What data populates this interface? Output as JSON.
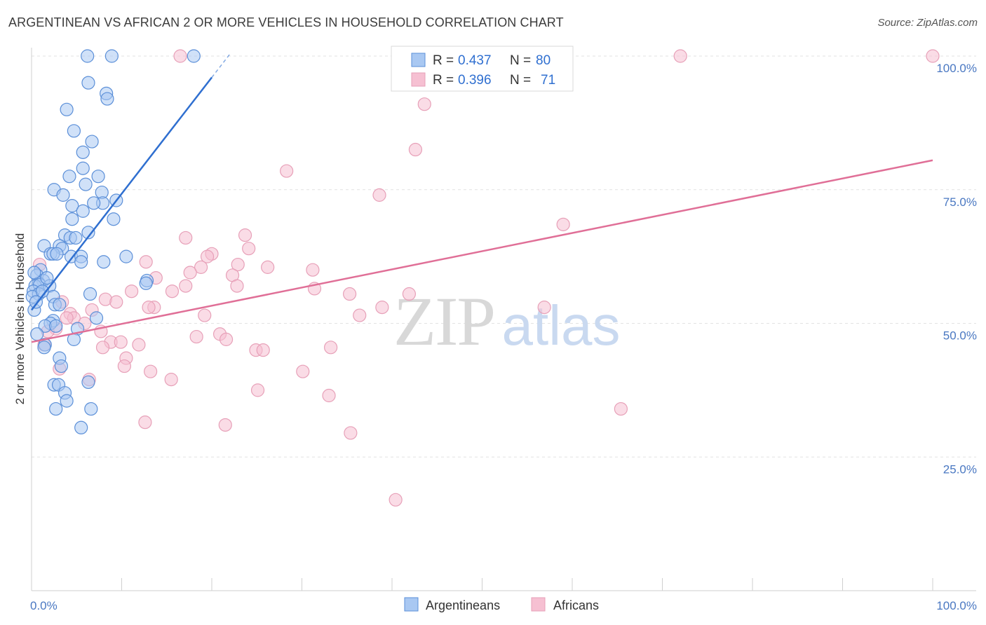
{
  "header": {
    "title": "ARGENTINEAN VS AFRICAN 2 OR MORE VEHICLES IN HOUSEHOLD CORRELATION CHART",
    "source": "Source: ZipAtlas.com"
  },
  "watermark": {
    "zip": "ZIP",
    "atlas": "atlas"
  },
  "colors": {
    "blue_fill": "#a9c8f2",
    "blue_stroke": "#5b8fd8",
    "blue_line": "#2f6fd0",
    "pink_fill": "#f6c0d2",
    "pink_stroke": "#e7a0b8",
    "pink_line": "#e06f97",
    "grid": "#e2e2e2",
    "tick_text": "#4a78c2"
  },
  "legend": {
    "rows": [
      {
        "series": "Argentineans",
        "r_label": "R =",
        "r_value": "0.437",
        "n_label": "N =",
        "n_value": "80"
      },
      {
        "series": "Africans",
        "r_label": "R =",
        "r_value": "0.396",
        "n_label": "N =",
        "n_value": "71"
      }
    ]
  },
  "chart_data": {
    "type": "scatter",
    "title": "ARGENTINEAN VS AFRICAN 2 OR MORE VEHICLES IN HOUSEHOLD CORRELATION CHART",
    "xlabel": "",
    "ylabel": "2 or more Vehicles in Household",
    "xlim": [
      0,
      100
    ],
    "ylim": [
      0,
      100
    ],
    "x_tick_labels": [
      {
        "value": 0,
        "label": "0.0%"
      },
      {
        "value": 100,
        "label": "100.0%"
      }
    ],
    "y_tick_labels": [
      {
        "value": 25,
        "label": "25.0%"
      },
      {
        "value": 50,
        "label": "50.0%"
      },
      {
        "value": 75,
        "label": "75.0%"
      },
      {
        "value": 100,
        "label": "100.0%"
      }
    ],
    "grid": true,
    "legend_position": "top-center",
    "series": [
      {
        "name": "Argentineans",
        "r": 0.437,
        "n": 80,
        "trendline": {
          "x": [
            0,
            20
          ],
          "y": [
            52.5,
            96
          ]
        },
        "points": [
          [
            6.2,
            100
          ],
          [
            8.9,
            100
          ],
          [
            18.0,
            100
          ],
          [
            6.3,
            95
          ],
          [
            8.3,
            93
          ],
          [
            8.4,
            92
          ],
          [
            3.9,
            90
          ],
          [
            4.7,
            86
          ],
          [
            6.7,
            84
          ],
          [
            5.7,
            82
          ],
          [
            5.7,
            79
          ],
          [
            4.2,
            77.5
          ],
          [
            7.4,
            77.5
          ],
          [
            6.0,
            76
          ],
          [
            2.5,
            75
          ],
          [
            7.8,
            74.5
          ],
          [
            3.5,
            74
          ],
          [
            9.4,
            73
          ],
          [
            7.9,
            72.5
          ],
          [
            6.9,
            72.5
          ],
          [
            4.5,
            72
          ],
          [
            5.7,
            71
          ],
          [
            4.5,
            69.5
          ],
          [
            9.1,
            69.5
          ],
          [
            6.3,
            67
          ],
          [
            3.7,
            66.5
          ],
          [
            4.3,
            66
          ],
          [
            4.9,
            66
          ],
          [
            1.4,
            64.5
          ],
          [
            3.1,
            64.5
          ],
          [
            3.4,
            64
          ],
          [
            2.1,
            63
          ],
          [
            2.4,
            63
          ],
          [
            4.4,
            62.5
          ],
          [
            5.5,
            62.5
          ],
          [
            10.5,
            62.5
          ],
          [
            5.5,
            61.5
          ],
          [
            8.0,
            61.5
          ],
          [
            1.0,
            60
          ],
          [
            0.6,
            59
          ],
          [
            1.3,
            58
          ],
          [
            12.8,
            58
          ],
          [
            0.8,
            57.5
          ],
          [
            0.4,
            57
          ],
          [
            12.7,
            57.5
          ],
          [
            0.9,
            57.2
          ],
          [
            2.0,
            57
          ],
          [
            0.2,
            56
          ],
          [
            0.8,
            55.5
          ],
          [
            6.5,
            55.5
          ],
          [
            2.4,
            55
          ],
          [
            2.6,
            53.5
          ],
          [
            3.1,
            53.5
          ],
          [
            0.3,
            52.5
          ],
          [
            7.2,
            51
          ],
          [
            2.4,
            50.5
          ],
          [
            2.1,
            50
          ],
          [
            1.5,
            49.5
          ],
          [
            2.7,
            49.5
          ],
          [
            5.1,
            49
          ],
          [
            0.6,
            48
          ],
          [
            4.7,
            47
          ],
          [
            1.5,
            46
          ],
          [
            1.4,
            45.5
          ],
          [
            3.1,
            43.5
          ],
          [
            3.3,
            42
          ],
          [
            6.3,
            39
          ],
          [
            2.5,
            38.5
          ],
          [
            3.0,
            38.5
          ],
          [
            3.7,
            37
          ],
          [
            3.9,
            35.5
          ],
          [
            2.7,
            34
          ],
          [
            6.6,
            34
          ],
          [
            5.5,
            30.5
          ],
          [
            0.1,
            55
          ],
          [
            1.2,
            56
          ],
          [
            0.5,
            54
          ],
          [
            1.7,
            58.5
          ],
          [
            0.3,
            59.5
          ],
          [
            2.8,
            63
          ]
        ]
      },
      {
        "name": "Africans",
        "r": 0.396,
        "n": 71,
        "trendline": {
          "x": [
            0,
            100
          ],
          "y": [
            46.5,
            80.5
          ]
        },
        "points": [
          [
            16.5,
            100
          ],
          [
            72.0,
            100
          ],
          [
            100.0,
            100
          ],
          [
            43.6,
            91
          ],
          [
            42.6,
            82.5
          ],
          [
            28.3,
            78.5
          ],
          [
            38.6,
            74
          ],
          [
            59.0,
            68.5
          ],
          [
            23.7,
            66.5
          ],
          [
            17.1,
            66
          ],
          [
            24.1,
            64
          ],
          [
            20.0,
            63
          ],
          [
            19.5,
            62.5
          ],
          [
            12.7,
            61.5
          ],
          [
            22.9,
            61
          ],
          [
            26.2,
            60.5
          ],
          [
            18.8,
            60.5
          ],
          [
            31.2,
            60
          ],
          [
            17.6,
            59.5
          ],
          [
            22.3,
            59
          ],
          [
            13.8,
            58.5
          ],
          [
            17.1,
            57
          ],
          [
            15.6,
            56
          ],
          [
            31.4,
            56.5
          ],
          [
            11.1,
            56
          ],
          [
            35.3,
            55.5
          ],
          [
            41.9,
            55.5
          ],
          [
            8.2,
            54.5
          ],
          [
            9.4,
            54
          ],
          [
            6.7,
            52.5
          ],
          [
            13.6,
            53
          ],
          [
            13.0,
            53
          ],
          [
            36.4,
            51.5
          ],
          [
            19.2,
            51.5
          ],
          [
            3.4,
            54
          ],
          [
            4.3,
            51.8
          ],
          [
            4.7,
            51
          ],
          [
            5.9,
            50
          ],
          [
            3.9,
            51
          ],
          [
            2.7,
            49
          ],
          [
            1.8,
            48.5
          ],
          [
            7.7,
            48.5
          ],
          [
            18.3,
            47.5
          ],
          [
            20.9,
            48
          ],
          [
            21.6,
            47
          ],
          [
            8.8,
            46.5
          ],
          [
            9.9,
            46.5
          ],
          [
            11.9,
            46
          ],
          [
            7.9,
            45.5
          ],
          [
            24.9,
            45
          ],
          [
            25.7,
            45
          ],
          [
            33.2,
            45.5
          ],
          [
            1.4,
            46
          ],
          [
            10.5,
            43.5
          ],
          [
            10.3,
            42
          ],
          [
            3.1,
            41.5
          ],
          [
            13.2,
            41
          ],
          [
            30.1,
            41
          ],
          [
            15.5,
            39.5
          ],
          [
            6.4,
            39.5
          ],
          [
            25.1,
            37.5
          ],
          [
            33.0,
            36.5
          ],
          [
            65.4,
            34
          ],
          [
            12.6,
            31.5
          ],
          [
            21.5,
            31
          ],
          [
            35.4,
            29.5
          ],
          [
            40.4,
            17
          ],
          [
            56.9,
            53
          ],
          [
            22.8,
            57
          ],
          [
            38.9,
            53
          ],
          [
            0.9,
            61
          ]
        ]
      }
    ]
  }
}
